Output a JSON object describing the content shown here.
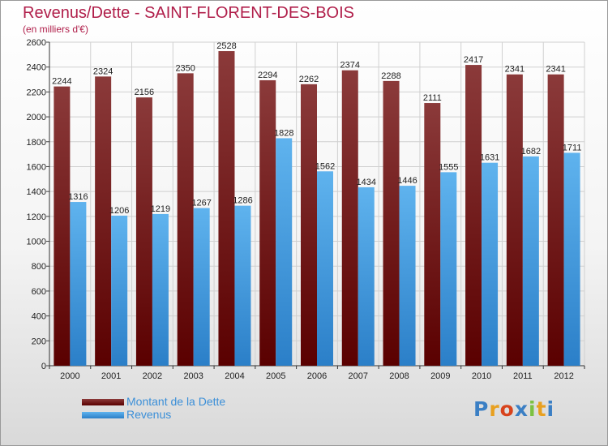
{
  "header": {
    "title": "Revenus/Dette - SAINT-FLORENT-DES-BOIS",
    "subtitle": "(en milliers d'€)"
  },
  "legend": {
    "items": [
      {
        "label": "Montant de la Dette",
        "color": "#6b0f14"
      },
      {
        "label": "Revenus",
        "color": "#3b97dc"
      }
    ]
  },
  "logo": {
    "text": "Proxiti",
    "letter_colors": [
      "#3b7fc4",
      "#e8a020",
      "#d8431c",
      "#3b7fc4",
      "#7cc142",
      "#e8a020",
      "#3b7fc4"
    ]
  },
  "colors": {
    "title": "#b01e4a",
    "debt_dark": "#5a0000",
    "debt_light": "#8b3a3a",
    "revenue_dark": "#2b7fc8",
    "revenue_light": "#5fb3ee"
  },
  "chart_data": {
    "type": "bar",
    "title": "Revenus/Dette - SAINT-FLORENT-DES-BOIS",
    "ylabel": "(en milliers d'€)",
    "xlabel": "",
    "ylim": [
      0,
      2600
    ],
    "yticks": [
      0,
      200,
      400,
      600,
      800,
      1000,
      1200,
      1400,
      1600,
      1800,
      2000,
      2200,
      2400,
      2600
    ],
    "grid": true,
    "legend_position": "bottom-left",
    "categories": [
      "2000",
      "2001",
      "2002",
      "2003",
      "2004",
      "2005",
      "2006",
      "2007",
      "2008",
      "2009",
      "2010",
      "2011",
      "2012"
    ],
    "series": [
      {
        "name": "Montant de la Dette",
        "values": [
          2244,
          2324,
          2156,
          2350,
          2528,
          2294,
          2262,
          2374,
          2288,
          2111,
          2417,
          2341,
          2341
        ]
      },
      {
        "name": "Revenus",
        "values": [
          1316,
          1206,
          1219,
          1267,
          1286,
          1828,
          1562,
          1434,
          1446,
          1555,
          1631,
          1682,
          1711
        ]
      }
    ]
  }
}
